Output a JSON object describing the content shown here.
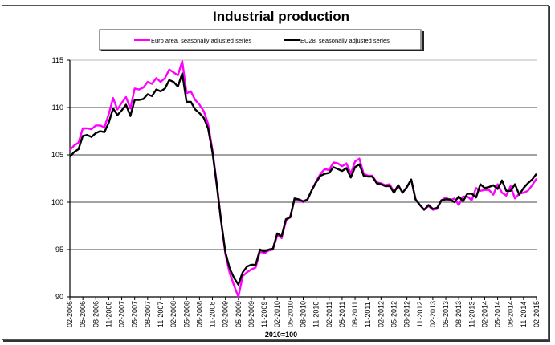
{
  "chart_data": {
    "type": "line",
    "title": "Industrial production",
    "xlabel": "2010=100",
    "ylabel": "",
    "ylim": [
      90,
      115
    ],
    "yticks": [
      90,
      95,
      100,
      105,
      110,
      115
    ],
    "grid": true,
    "legend_position": "top",
    "x_tick_labels": [
      "02-2006",
      "05-2006",
      "08-2006",
      "11-2006",
      "02-2007",
      "05-2007",
      "08-2007",
      "11-2007",
      "02-2008",
      "05-2008",
      "08-2008",
      "11-2008",
      "02-2009",
      "05-2009",
      "08-2009",
      "11-2009",
      "02-2010",
      "05-2010",
      "08-2010",
      "11-2010",
      "02-2011",
      "05-2011",
      "08-2011",
      "11-2011",
      "02-2012",
      "05-2012",
      "08-2012",
      "11-2012",
      "02-2013",
      "05-2013",
      "08-2013",
      "11-2013",
      "02-2014",
      "05-2014",
      "08-2014",
      "11-2014",
      "02-2015"
    ],
    "x_start": "02-2006",
    "x_end": "02-2015",
    "frequency": "monthly",
    "series": [
      {
        "name": "Euro area, seasonally adjusted series",
        "color": "#ff00ff",
        "values": [
          105.5,
          106,
          106.3,
          107.8,
          107.8,
          107.7,
          108.1,
          108.1,
          107.9,
          109.3,
          111.0,
          109.8,
          110.5,
          111.1,
          109.9,
          112.0,
          111.9,
          112.1,
          112.7,
          112.5,
          113.1,
          112.7,
          113.1,
          114.0,
          113.7,
          113.4,
          114.9,
          111.5,
          111.7,
          110.8,
          110.3,
          109.6,
          108.3,
          105.5,
          102.0,
          98.0,
          94.5,
          92.5,
          91.2,
          90.0,
          92.2,
          92.6,
          92.9,
          93.1,
          94.8,
          94.6,
          94.9,
          95.0,
          96.5,
          96.2,
          98.0,
          98.5,
          100.3,
          100.2,
          100.0,
          100.3,
          101.3,
          102.2,
          103.0,
          103.5,
          103.4,
          104.2,
          104.1,
          103.8,
          104.1,
          103.0,
          104.3,
          104.6,
          103.0,
          102.8,
          102.8,
          102.1,
          102.0,
          101.8,
          101.9,
          101.1,
          101.8,
          101.0,
          101.6,
          102.4,
          100.3,
          99.7,
          99.2,
          99.6,
          99.2,
          99.3,
          100.2,
          100.5,
          100.2,
          100.4,
          99.7,
          100.6,
          100.6,
          100.2,
          101.5,
          101.2,
          101.3,
          101.3,
          100.8,
          101.9,
          101.0,
          100.7,
          101.7,
          100.4,
          100.9,
          101.0,
          101.2,
          101.8,
          102.5
        ]
      },
      {
        "name": "EU28, seasonally adjusted series",
        "color": "#000000",
        "values": [
          104.8,
          105.3,
          105.6,
          107.0,
          107.1,
          106.9,
          107.3,
          107.5,
          107.4,
          108.4,
          109.9,
          109.2,
          109.7,
          110.3,
          109.1,
          110.8,
          110.8,
          110.9,
          111.4,
          111.2,
          111.9,
          111.7,
          112.0,
          112.9,
          112.7,
          112.2,
          113.6,
          110.6,
          110.6,
          109.8,
          109.4,
          108.9,
          107.8,
          105.3,
          101.8,
          98.0,
          94.7,
          93.0,
          92.0,
          91.3,
          92.6,
          93.2,
          93.4,
          93.4,
          95.0,
          94.8,
          95.0,
          95.1,
          96.7,
          96.4,
          98.2,
          98.4,
          100.4,
          100.3,
          100.1,
          100.3,
          101.3,
          102.1,
          102.8,
          103.0,
          103.1,
          103.7,
          103.5,
          103.3,
          103.6,
          102.6,
          103.7,
          104.0,
          102.8,
          102.7,
          102.7,
          102.0,
          101.9,
          101.7,
          101.7,
          101.0,
          101.8,
          101.0,
          101.6,
          102.4,
          100.3,
          99.7,
          99.2,
          99.7,
          99.3,
          99.4,
          100.2,
          100.3,
          100.3,
          100.0,
          100.6,
          100.1,
          100.9,
          100.9,
          100.5,
          101.9,
          101.5,
          101.6,
          101.8,
          101.4,
          102.3,
          101.2,
          101.2,
          101.9,
          100.8,
          101.5,
          102.0,
          102.4,
          103.0
        ]
      }
    ]
  }
}
